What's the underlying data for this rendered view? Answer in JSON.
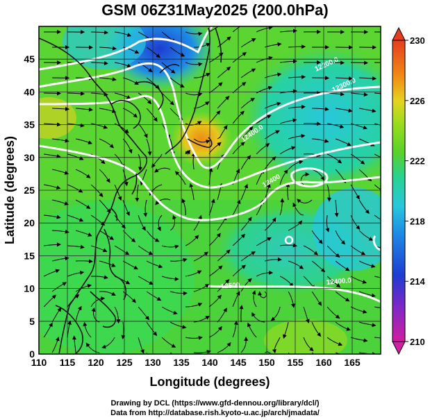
{
  "title": "GSM 06Z31May2025 (200.0hPa)",
  "xlabel": "Longitude (degrees)",
  "ylabel": "Latitude (degrees)",
  "x_ticks": [
    "110",
    "115",
    "120",
    "125",
    "130",
    "135",
    "140",
    "145",
    "150",
    "155",
    "160",
    "165"
  ],
  "y_ticks": [
    "0",
    "5",
    "10",
    "15",
    "20",
    "25",
    "30",
    "35",
    "40",
    "45"
  ],
  "colorbar_ticks": [
    "210",
    "214",
    "218",
    "222",
    "226",
    "230"
  ],
  "credits": {
    "line1": "Drawing by DCL (https://www.gfd-dennou.org/library/dcl/)",
    "line2": "Data from http://database.rish.kyoto-u.ac.jp/arch/jmadata/"
  },
  "contour_labels": [
    "12200.0",
    "12300.0",
    "12400.0",
    "12400",
    "12500",
    "12400.0"
  ],
  "chart_data": {
    "type": "heatmap",
    "variable": "temperature with geopotential height contours and streamlines",
    "xlim": [
      110,
      170
    ],
    "ylim": [
      0,
      50
    ],
    "color_range": [
      210,
      230
    ],
    "colors": {
      "low": "#d21ea0",
      "blue": "#1e3cd2",
      "cyan": "#28c8dc",
      "green": "#5ad228",
      "yellow": "#e6d21e",
      "orange": "#f08c14",
      "high": "#e63c1e"
    },
    "features": [
      {
        "name": "cold-pool",
        "lon": 130,
        "lat": 47,
        "temp": 213
      },
      {
        "name": "warm-ridge",
        "lon": 138,
        "lat": 34,
        "temp": 228
      },
      {
        "name": "anticyclone",
        "lon": 157,
        "lat": 30,
        "temp": 220
      },
      {
        "name": "cyclone-marker",
        "lon": 154,
        "lat": 19,
        "temp": 219
      }
    ]
  }
}
